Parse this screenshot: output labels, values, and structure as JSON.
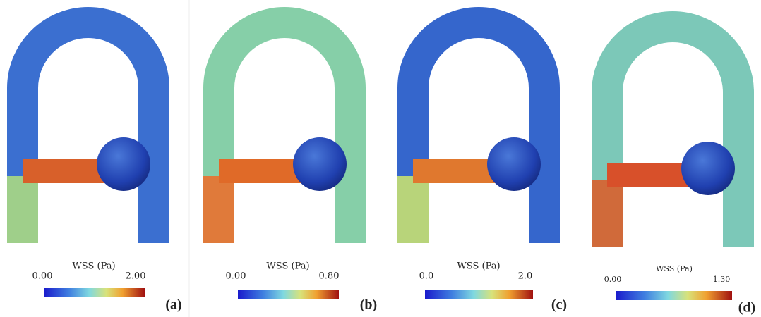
{
  "panels": [
    {
      "colorbar_title": "WSS (Pa)",
      "min": "0.00",
      "max": "2.00",
      "label": "(a)"
    },
    {
      "colorbar_title": "WSS (Pa)",
      "min": "0.00",
      "max": "0.80",
      "label": "(b)"
    },
    {
      "colorbar_title": "WSS (Pa)",
      "min": "0.0",
      "max": "2.0",
      "label": "(c)"
    },
    {
      "colorbar_title": "WSS (Pa)",
      "min": "0.00",
      "max": "1.30",
      "label": "(d)"
    }
  ]
}
